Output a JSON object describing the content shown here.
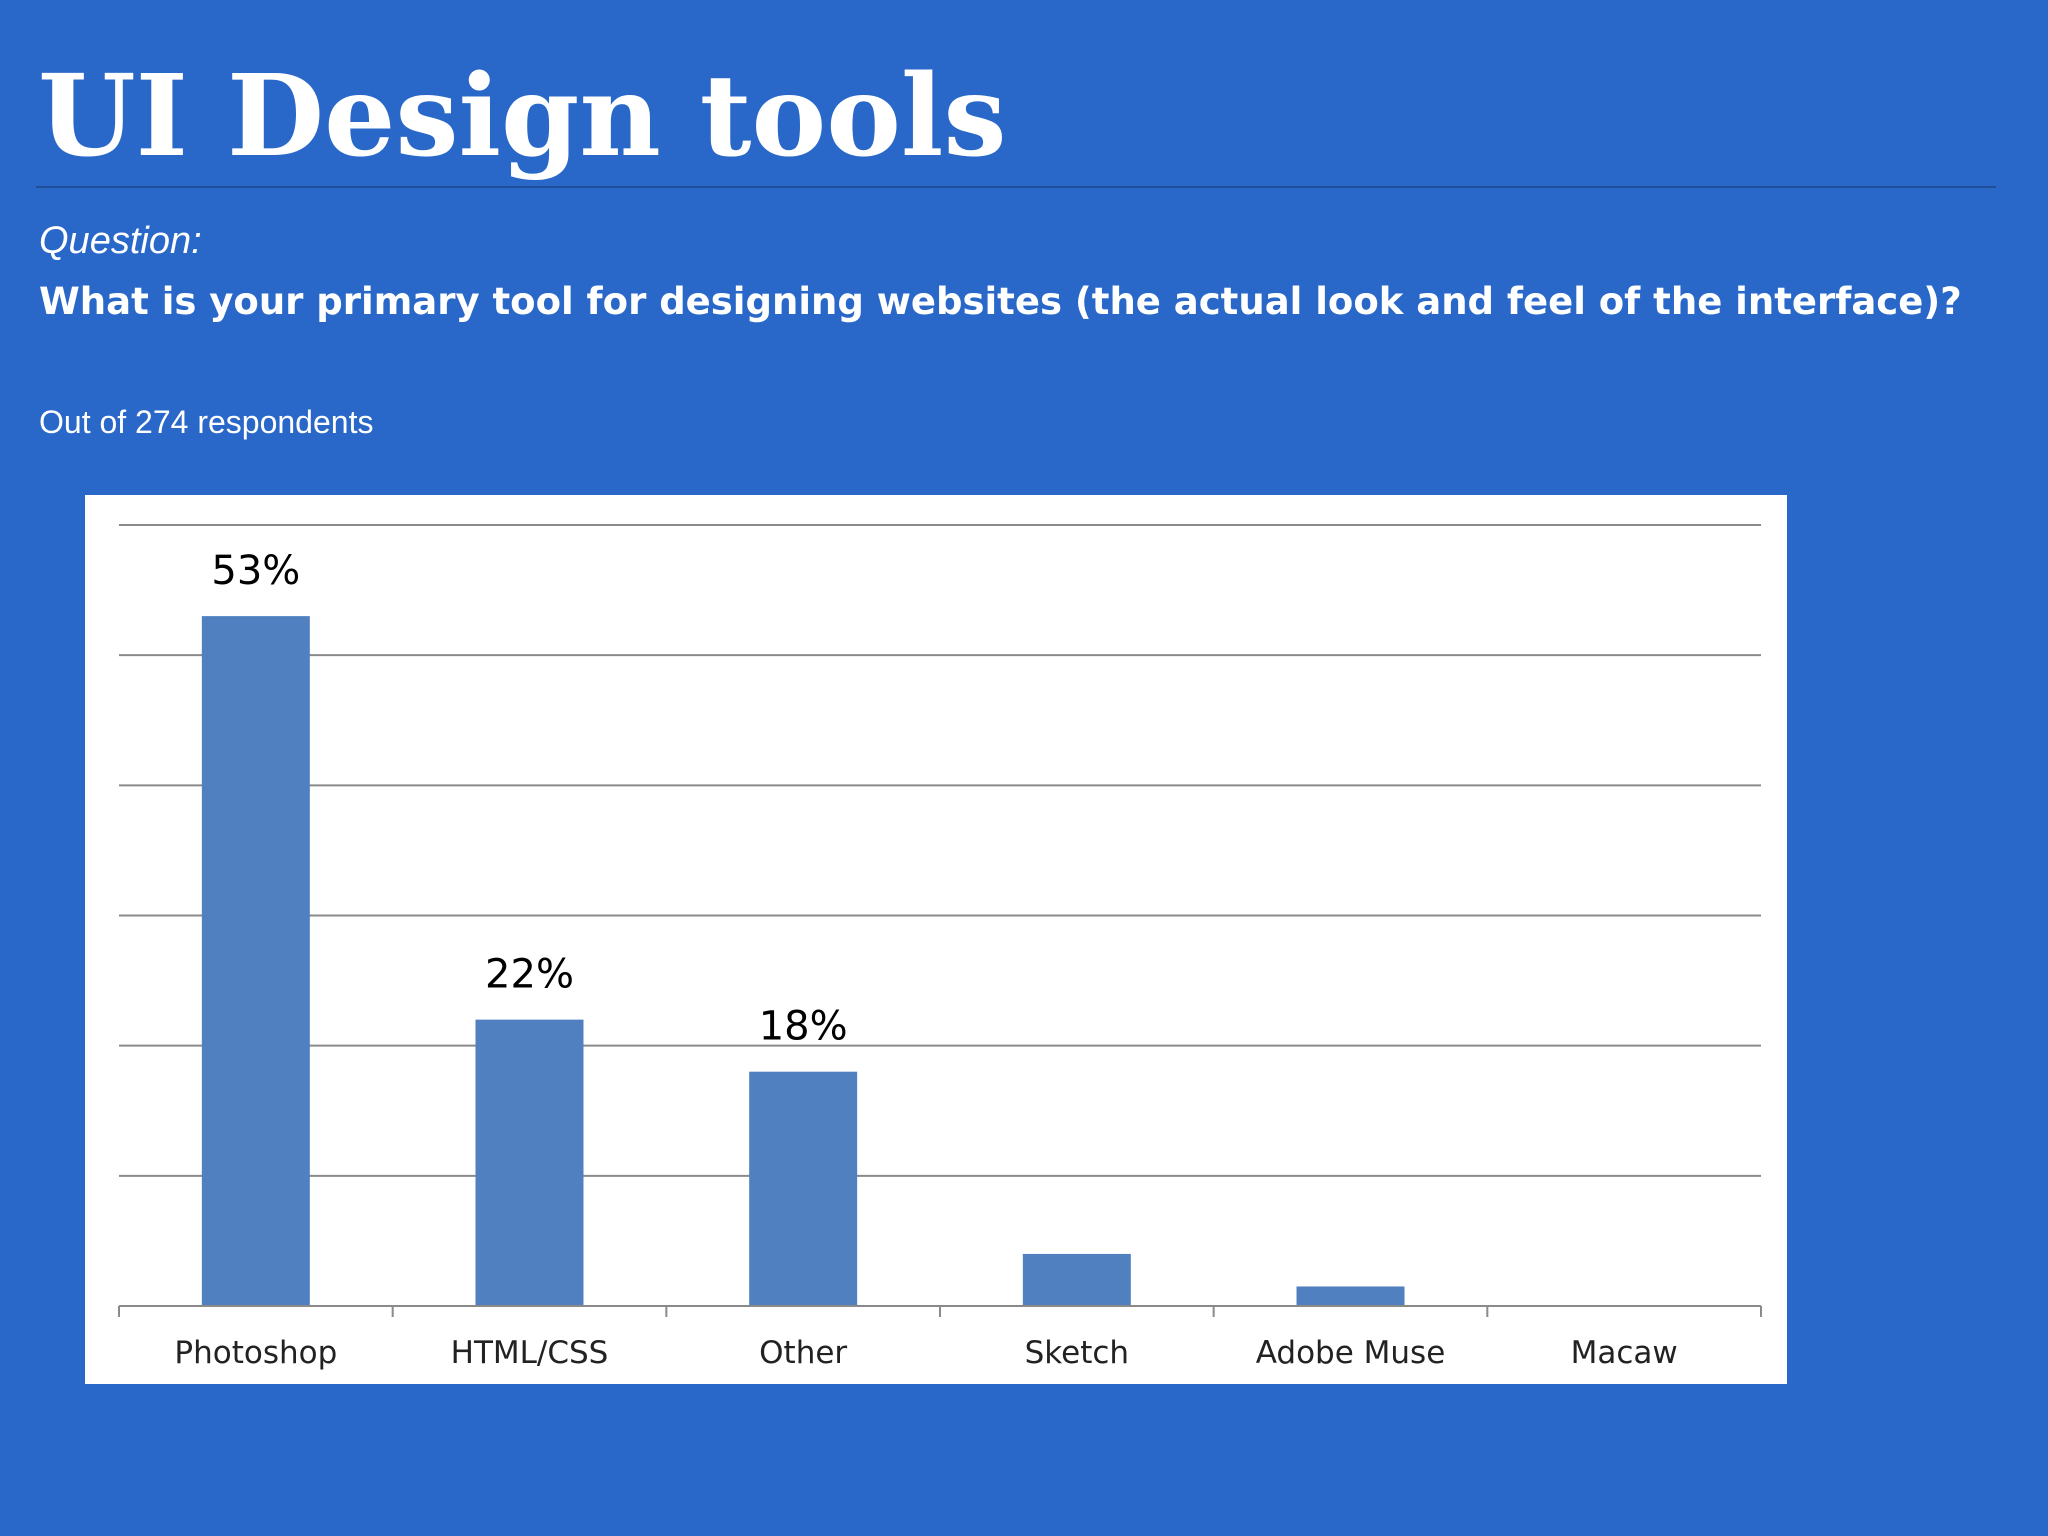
{
  "slide": {
    "title": "UI Design tools",
    "question_label": "Question:",
    "question": "What is your primary tool for designing websites (the actual look and feel of the interface)?",
    "respondents": "Out of 274 respondents"
  },
  "colors": {
    "background": "#2968c8",
    "bar": "#5080c0",
    "gridline": "#8a8a8a",
    "text": "#ffffff"
  },
  "chart_data": {
    "type": "bar",
    "categories": [
      "Photoshop",
      "HTML/CSS",
      "Other",
      "Sketch",
      "Adobe Muse",
      "Macaw"
    ],
    "values": [
      53,
      22,
      18,
      4,
      1.5,
      0
    ],
    "data_labels": [
      "53%",
      "22%",
      "18%",
      "",
      "",
      ""
    ],
    "title": "",
    "xlabel": "",
    "ylabel": "",
    "ylim": [
      0,
      60
    ],
    "grid": true,
    "legend": "none"
  }
}
